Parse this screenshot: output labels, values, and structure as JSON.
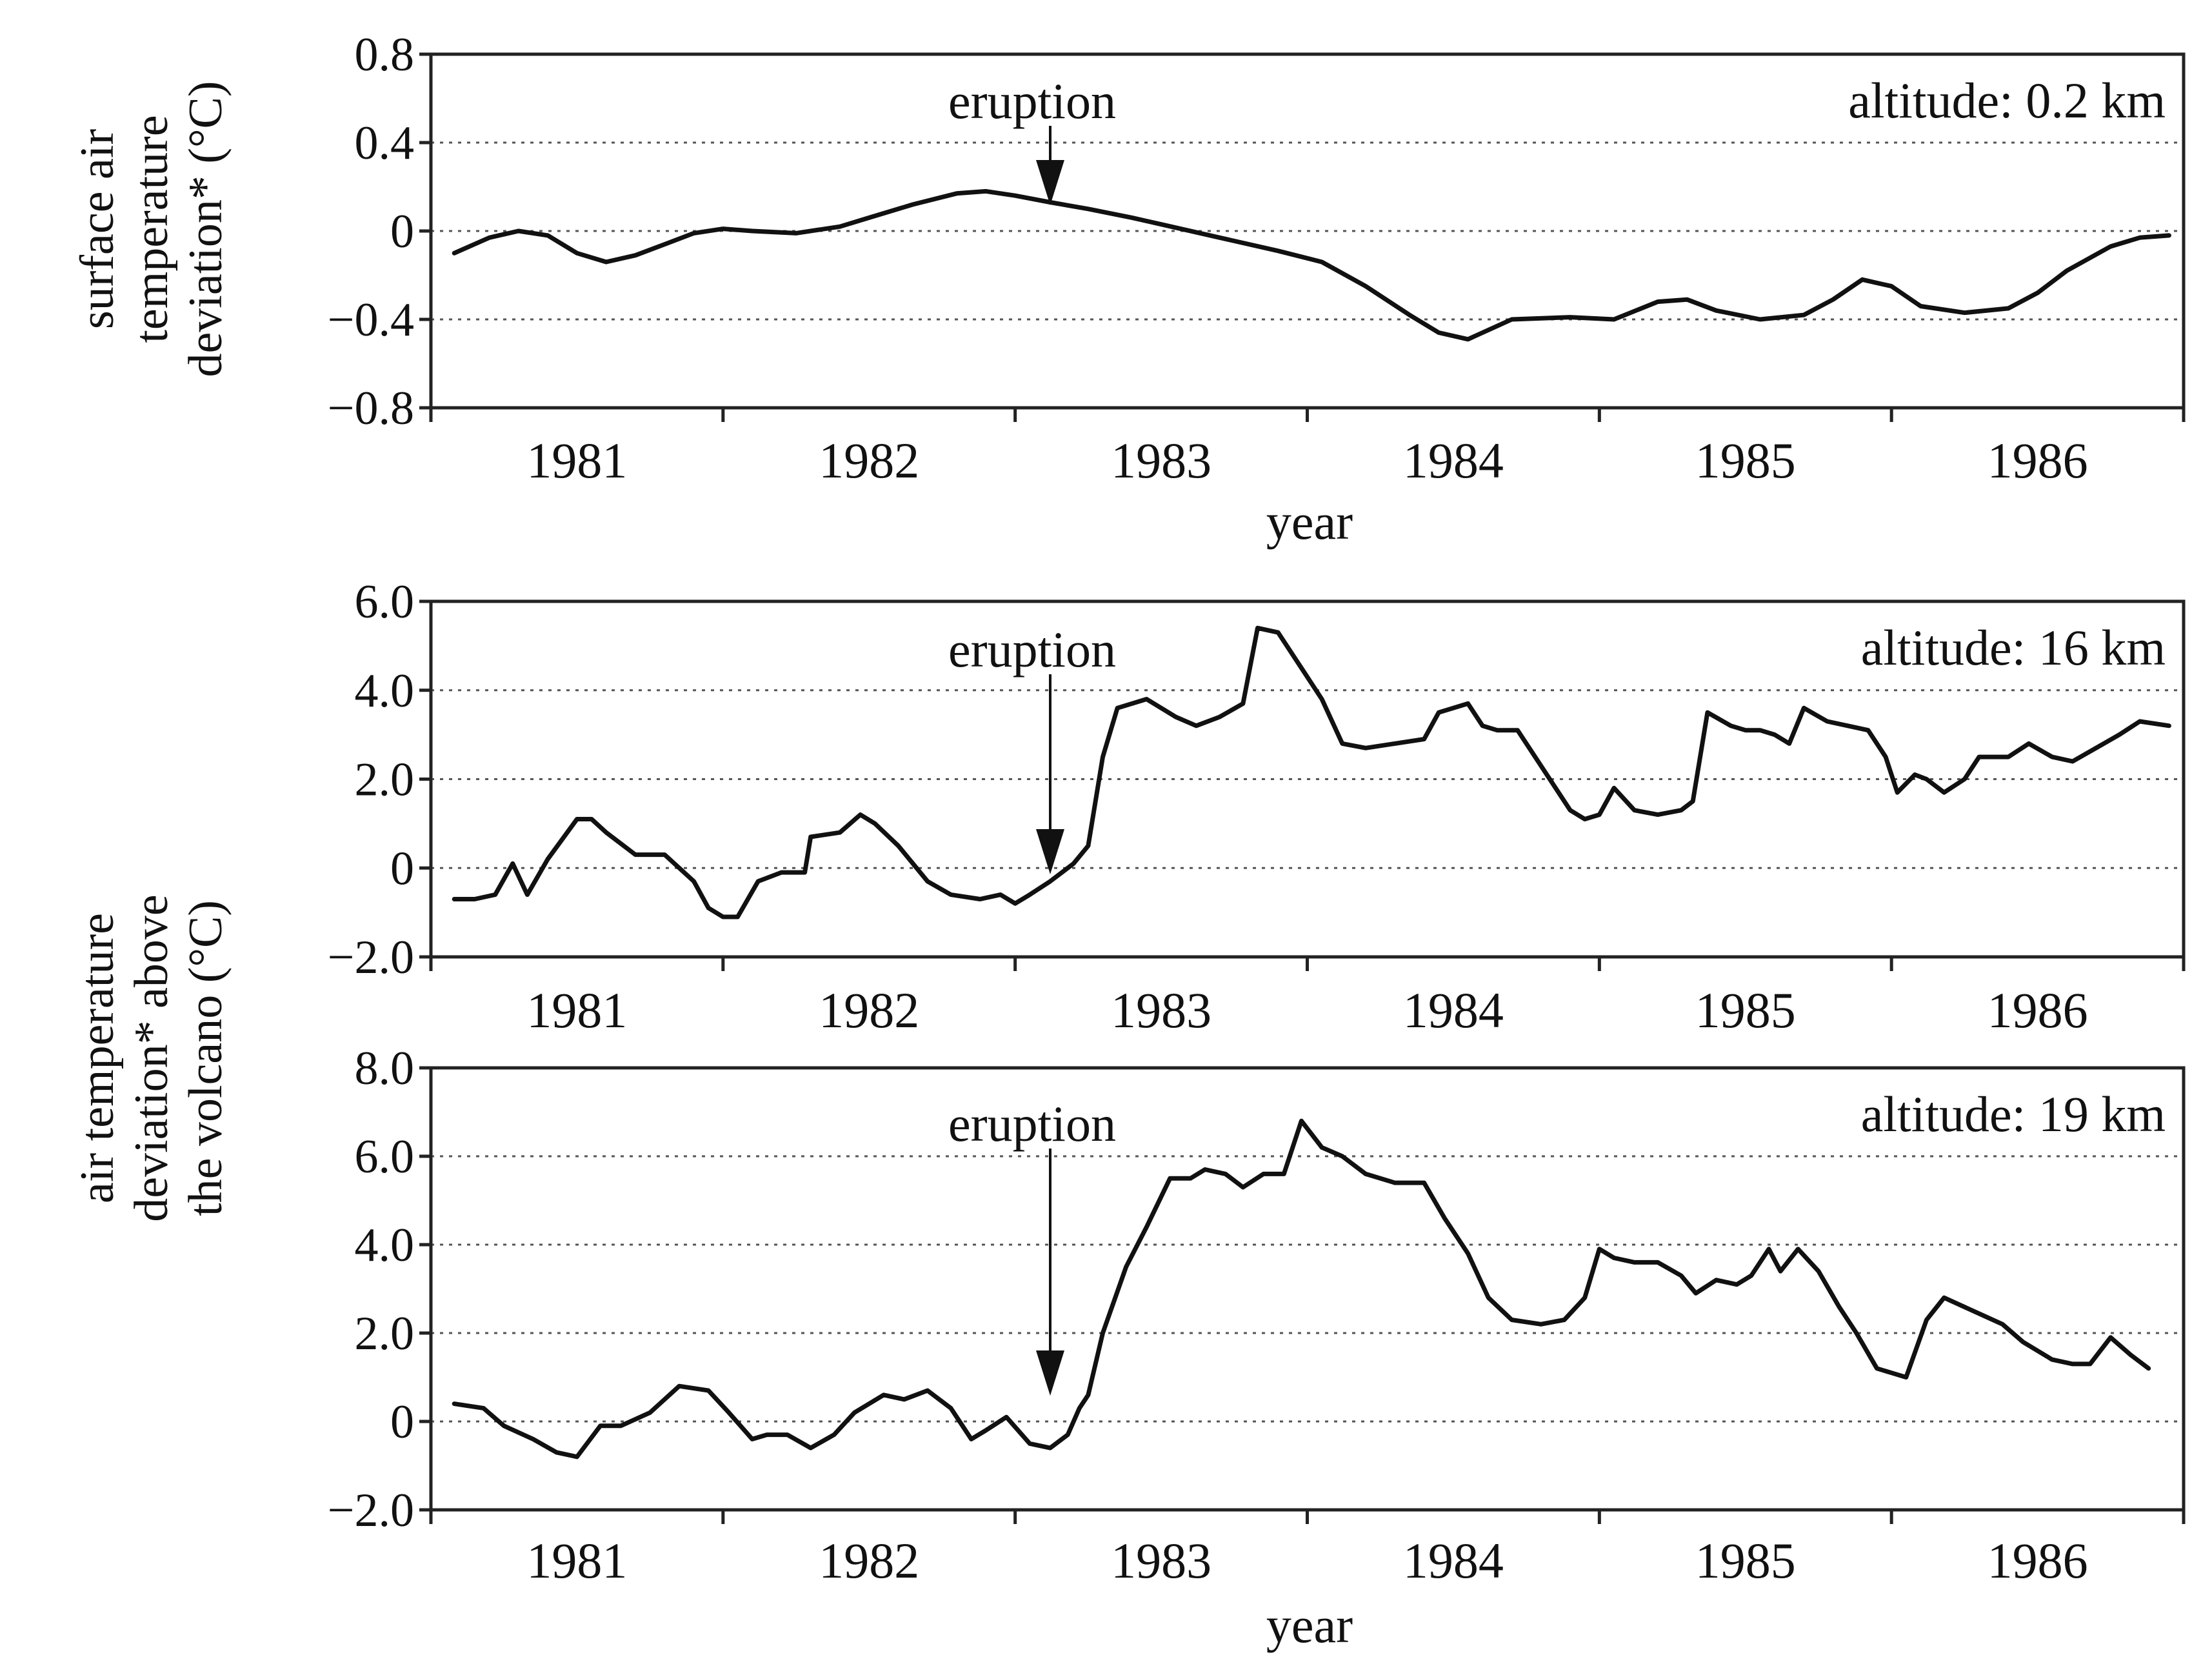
{
  "shared": {
    "xlabel": "year",
    "ylabel_top": "surface air temperature deviation* (°C)",
    "ylabel_top_lines": [
      "surface air",
      "temperature",
      "deviation* (°C)"
    ],
    "ylabel_bottom": "air temperature deviation* above the volcano (°C)",
    "ylabel_bottom_lines": [
      "air temperature",
      "deviation* above",
      "the volcano (°C)"
    ],
    "annotation": "eruption",
    "eruption_year": 1982.62
  },
  "chart_data": [
    {
      "type": "line",
      "title": "altitude: 0.2 km",
      "xlabel": "year",
      "ylabel": "surface air temperature deviation* (°C)",
      "xlim": [
        1980.5,
        1986.5
      ],
      "ylim": [
        -0.8,
        0.8
      ],
      "yticks": [
        -0.8,
        -0.4,
        0,
        0.4,
        0.8
      ],
      "ytick_labels": [
        "−0.8",
        "−0.4",
        "0",
        "0.4",
        "0.8"
      ],
      "xtick_labels": [
        "1981",
        "1982",
        "1983",
        "1984",
        "1985",
        "1986"
      ],
      "grid": true,
      "annotation": {
        "text": "eruption",
        "x": 1982.62
      },
      "series": [
        {
          "x": [
            1980.58,
            1980.7,
            1980.8,
            1980.9,
            1981.0,
            1981.1,
            1981.2,
            1981.3,
            1981.4,
            1981.5,
            1981.6,
            1981.75,
            1981.9,
            1982.0,
            1982.15,
            1982.3,
            1982.4,
            1982.5,
            1982.62,
            1982.75,
            1982.9,
            1983.0,
            1983.2,
            1983.4,
            1983.55,
            1983.7,
            1983.85,
            1983.95,
            1984.05,
            1984.2,
            1984.4,
            1984.55,
            1984.7,
            1984.8,
            1984.9,
            1985.05,
            1985.2,
            1985.3,
            1985.4,
            1985.5,
            1985.6,
            1985.75,
            1985.9,
            1986.0,
            1986.1,
            1986.25,
            1986.35,
            1986.45
          ],
          "y": [
            -0.1,
            -0.03,
            0.0,
            -0.02,
            -0.1,
            -0.14,
            -0.11,
            -0.06,
            -0.01,
            0.01,
            0.0,
            -0.01,
            0.02,
            0.06,
            0.12,
            0.17,
            0.18,
            0.16,
            0.13,
            0.1,
            0.06,
            0.03,
            -0.03,
            -0.09,
            -0.14,
            -0.25,
            -0.38,
            -0.46,
            -0.49,
            -0.4,
            -0.39,
            -0.4,
            -0.32,
            -0.31,
            -0.36,
            -0.4,
            -0.38,
            -0.31,
            -0.22,
            -0.25,
            -0.34,
            -0.37,
            -0.35,
            -0.28,
            -0.18,
            -0.07,
            -0.03,
            -0.02
          ]
        }
      ]
    },
    {
      "type": "line",
      "title": "altitude: 16 km",
      "ylabel": "air temperature deviation* above the volcano (°C)",
      "xlim": [
        1980.5,
        1986.5
      ],
      "ylim": [
        -2.0,
        6.0
      ],
      "yticks": [
        -2.0,
        0,
        2.0,
        4.0,
        6.0
      ],
      "ytick_labels": [
        "−2.0",
        "0",
        "2.0",
        "4.0",
        "6.0"
      ],
      "xtick_labels": [
        "1981",
        "1982",
        "1983",
        "1984",
        "1985",
        "1986"
      ],
      "grid": true,
      "annotation": {
        "text": "eruption",
        "x": 1982.62
      },
      "series": [
        {
          "x": [
            1980.58,
            1980.65,
            1980.72,
            1980.78,
            1980.83,
            1980.9,
            1981.0,
            1981.05,
            1981.1,
            1981.2,
            1981.3,
            1981.4,
            1981.45,
            1981.5,
            1981.55,
            1981.62,
            1981.7,
            1981.78,
            1981.8,
            1981.9,
            1981.97,
            1982.02,
            1982.1,
            1982.2,
            1982.28,
            1982.38,
            1982.45,
            1982.5,
            1982.55,
            1982.62,
            1982.7,
            1982.75,
            1982.8,
            1982.85,
            1982.95,
            1983.05,
            1983.12,
            1983.2,
            1983.28,
            1983.33,
            1983.4,
            1983.5,
            1983.55,
            1983.62,
            1983.7,
            1983.8,
            1983.9,
            1983.95,
            1984.05,
            1984.1,
            1984.15,
            1984.22,
            1984.3,
            1984.4,
            1984.45,
            1984.5,
            1984.55,
            1984.62,
            1984.7,
            1984.78,
            1984.82,
            1984.87,
            1984.95,
            1985.0,
            1985.05,
            1985.1,
            1985.15,
            1985.2,
            1985.28,
            1985.35,
            1985.42,
            1985.48,
            1985.52,
            1985.58,
            1985.62,
            1985.68,
            1985.75,
            1985.8,
            1985.9,
            1985.97,
            1986.05,
            1986.12,
            1986.2,
            1986.28,
            1986.35,
            1986.45
          ],
          "y": [
            -0.7,
            -0.7,
            -0.6,
            0.1,
            -0.6,
            0.2,
            1.1,
            1.1,
            0.8,
            0.3,
            0.3,
            -0.3,
            -0.9,
            -1.1,
            -1.1,
            -0.3,
            -0.1,
            -0.1,
            0.7,
            0.8,
            1.2,
            1.0,
            0.5,
            -0.3,
            -0.6,
            -0.7,
            -0.6,
            -0.8,
            -0.6,
            -0.3,
            0.1,
            0.5,
            2.5,
            3.6,
            3.8,
            3.4,
            3.2,
            3.4,
            3.7,
            5.4,
            5.3,
            4.3,
            3.8,
            2.8,
            2.7,
            2.8,
            2.9,
            3.5,
            3.7,
            3.2,
            3.1,
            3.1,
            2.3,
            1.3,
            1.1,
            1.2,
            1.8,
            1.3,
            1.2,
            1.3,
            1.5,
            3.5,
            3.2,
            3.1,
            3.1,
            3.0,
            2.8,
            3.6,
            3.3,
            3.2,
            3.1,
            2.5,
            1.7,
            2.1,
            2.0,
            1.7,
            2.0,
            2.5,
            2.5,
            2.8,
            2.5,
            2.4,
            2.7,
            3.0,
            3.3,
            3.2
          ]
        }
      ]
    },
    {
      "type": "line",
      "title": "altitude: 19 km",
      "xlabel": "year",
      "ylabel": "air temperature deviation* above the volcano (°C)",
      "xlim": [
        1980.5,
        1986.5
      ],
      "ylim": [
        -2.0,
        8.0
      ],
      "yticks": [
        -2.0,
        0,
        2.0,
        4.0,
        6.0,
        8.0
      ],
      "ytick_labels": [
        "−2.0",
        "0",
        "2.0",
        "4.0",
        "6.0",
        "8.0"
      ],
      "xtick_labels": [
        "1981",
        "1982",
        "1983",
        "1984",
        "1985",
        "1986"
      ],
      "grid": true,
      "annotation": {
        "text": "eruption",
        "x": 1982.62
      },
      "series": [
        {
          "x": [
            1980.58,
            1980.68,
            1980.75,
            1980.85,
            1980.93,
            1981.0,
            1981.08,
            1981.15,
            1981.25,
            1981.35,
            1981.45,
            1981.52,
            1981.6,
            1981.65,
            1981.72,
            1981.8,
            1981.88,
            1981.95,
            1982.05,
            1982.12,
            1982.2,
            1982.28,
            1982.35,
            1982.4,
            1982.47,
            1982.55,
            1982.62,
            1982.68,
            1982.72,
            1982.75,
            1982.8,
            1982.88,
            1982.95,
            1983.03,
            1983.1,
            1983.15,
            1983.22,
            1983.28,
            1983.35,
            1983.42,
            1983.48,
            1983.55,
            1983.62,
            1983.7,
            1983.8,
            1983.9,
            1983.97,
            1984.05,
            1984.12,
            1984.2,
            1984.3,
            1984.38,
            1984.45,
            1984.5,
            1984.55,
            1984.62,
            1984.7,
            1984.78,
            1984.83,
            1984.9,
            1984.97,
            1985.02,
            1985.08,
            1985.12,
            1985.18,
            1985.25,
            1985.32,
            1985.38,
            1985.45,
            1985.5,
            1985.55,
            1985.62,
            1985.68,
            1985.78,
            1985.88,
            1985.95,
            1986.05,
            1986.12,
            1986.18,
            1986.25,
            1986.32,
            1986.38
          ],
          "y": [
            0.4,
            0.3,
            -0.1,
            -0.4,
            -0.7,
            -0.8,
            -0.1,
            -0.1,
            0.2,
            0.8,
            0.7,
            0.2,
            -0.4,
            -0.3,
            -0.3,
            -0.6,
            -0.3,
            0.2,
            0.6,
            0.5,
            0.7,
            0.3,
            -0.4,
            -0.2,
            0.1,
            -0.5,
            -0.6,
            -0.3,
            0.3,
            0.6,
            2.0,
            3.5,
            4.4,
            5.5,
            5.5,
            5.7,
            5.6,
            5.3,
            5.6,
            5.6,
            6.8,
            6.2,
            6.0,
            5.6,
            5.4,
            5.4,
            4.6,
            3.8,
            2.8,
            2.3,
            2.2,
            2.3,
            2.8,
            3.9,
            3.7,
            3.6,
            3.6,
            3.3,
            2.9,
            3.2,
            3.1,
            3.3,
            3.9,
            3.4,
            3.9,
            3.4,
            2.6,
            2.0,
            1.2,
            1.1,
            1.0,
            2.3,
            2.8,
            2.5,
            2.2,
            1.8,
            1.4,
            1.3,
            1.3,
            1.9,
            1.5,
            1.2
          ]
        }
      ]
    }
  ]
}
